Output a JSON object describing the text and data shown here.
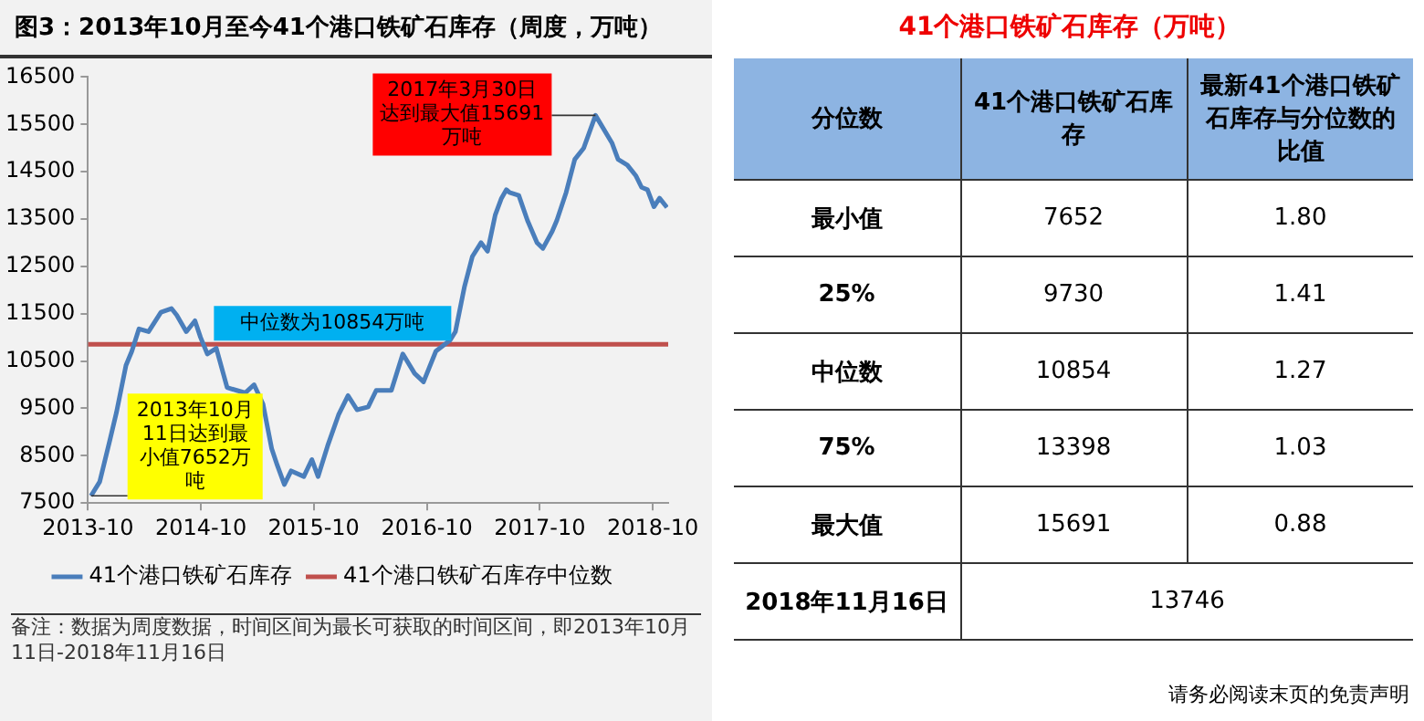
{
  "chart_data": [
    {
      "type": "line",
      "title": "图3：2013年10月至今41个港口铁矿石库存（周度，万吨）",
      "series": [
        {
          "name": "41个港口铁矿石库存",
          "color": "#4a7ebb",
          "x": [
            "2013-10-11",
            "2013-11-08",
            "2013-12-11",
            "2014-01-01",
            "2014-02-01",
            "2014-02-20",
            "2014-03-15",
            "2014-04-15",
            "2014-05-25",
            "2014-06-28",
            "2014-07-15",
            "2014-08-15",
            "2014-09-12",
            "2014-09-30",
            "2014-10-22",
            "2014-11-20",
            "2014-12-25",
            "2015-01-25",
            "2015-02-22",
            "2015-03-22",
            "2015-04-20",
            "2015-05-18",
            "2015-06-05",
            "2015-06-28",
            "2015-07-20",
            "2015-08-30",
            "2015-09-25",
            "2015-10-15",
            "2015-11-15",
            "2015-12-20",
            "2016-01-20",
            "2016-02-18",
            "2016-03-25",
            "2016-04-20",
            "2016-06-08",
            "2016-07-15",
            "2016-08-22",
            "2016-09-20",
            "2016-10-30",
            "2016-12-15",
            "2017-01-01",
            "2017-01-30",
            "2017-02-25",
            "2017-03-25",
            "2017-04-15",
            "2017-05-10",
            "2017-05-30",
            "2017-06-15",
            "2017-06-25",
            "2017-07-25",
            "2017-08-22",
            "2017-09-22",
            "2017-10-11",
            "2017-11-10",
            "2017-11-25",
            "2017-12-25",
            "2018-01-22",
            "2018-02-20",
            "2018-03-30",
            "2018-05-22",
            "2018-06-11",
            "2018-07-11",
            "2018-08-08",
            "2018-08-26",
            "2018-09-14",
            "2018-10-05",
            "2018-10-23",
            "2018-11-16"
          ],
          "values": [
            7652,
            7950,
            8830,
            9410,
            10410,
            10710,
            11180,
            11120,
            11530,
            11610,
            11470,
            11120,
            11350,
            11000,
            10650,
            10770,
            9940,
            9880,
            9830,
            10000,
            9590,
            8650,
            8300,
            7890,
            8180,
            8060,
            8420,
            8060,
            8710,
            9360,
            9770,
            9470,
            9530,
            9880,
            9880,
            10650,
            10240,
            10060,
            10710,
            10940,
            11120,
            12060,
            12710,
            13000,
            12820,
            13590,
            13940,
            14120,
            14060,
            14000,
            13470,
            13000,
            12880,
            13240,
            13470,
            14060,
            14760,
            15000,
            15691,
            15110,
            14760,
            14640,
            14410,
            14170,
            14120,
            13760,
            13940,
            13746
          ]
        },
        {
          "name": "41个港口铁矿石库存中位数",
          "color": "#c0504d",
          "x": [
            "2013-10-01",
            "2018-11-20"
          ],
          "values": [
            10854,
            10854
          ]
        }
      ],
      "xlim": [
        "2013-10-01",
        "2018-11-20"
      ],
      "xticks": [
        "2013-10",
        "2014-10",
        "2015-10",
        "2016-10",
        "2017-10",
        "2018-10"
      ],
      "ylim": [
        7500,
        16500
      ],
      "yticks": [
        7500,
        8500,
        9500,
        10500,
        11500,
        12500,
        13500,
        14500,
        15500,
        16500
      ],
      "grid": false,
      "legend": "bottom",
      "marker": "none",
      "line_style": "solid",
      "annotations": [
        {
          "text": "2017年3月30日达到最大值15691万吨",
          "x": "2018-03-30",
          "y": 15691
        },
        {
          "text": "中位数为10854万吨",
          "x": "2015-12-01",
          "y": 10854
        },
        {
          "text": "2013年10月11日达到最小值7652万吨",
          "x": "2013-10-11",
          "y": 7652
        },
        "备注：数据为周度数据，时间区间为最长可获取的时间区间，即2013年10月11日-2018年11月16日"
      ]
    },
    {
      "type": "other",
      "title": "41个港口铁矿石库存（万吨）",
      "xlabel": "分位数",
      "categories": [
        "最小值",
        "25%",
        "中位数",
        "75%",
        "最大值",
        "2018年11月16日"
      ],
      "series": [
        {
          "name": "41个港口铁矿石库存",
          "values": [
            7652,
            9730,
            10854,
            13398,
            15691,
            13746
          ],
          "value_labels": [
            "7652",
            "9730",
            "10854",
            "13398",
            "15691",
            "13746"
          ]
        },
        {
          "name": "最新41个港口铁矿石库存与分位数的比值",
          "values": [
            1.8,
            1.41,
            1.27,
            1.03,
            0.88,
            null
          ],
          "value_labels": [
            "1.80",
            "1.41",
            "1.27",
            "1.03",
            "0.88",
            null
          ]
        }
      ],
      "annotations": [
        "请务必阅读末页的免责声明"
      ]
    }
  ]
}
